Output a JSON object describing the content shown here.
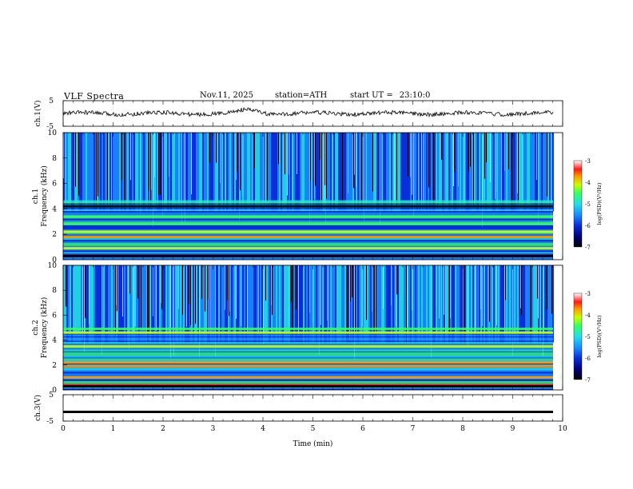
{
  "header": {
    "title": "VLF  Spectra",
    "date": "Nov.11, 2025",
    "station": "station=ATH",
    "start_label": "start  UT  =",
    "start_time": "23:10:0"
  },
  "chart_data": [
    {
      "type": "line",
      "ylabel": "ch.1(V)",
      "yticks": [
        "5",
        "-5"
      ],
      "ylim": [
        -5,
        5
      ],
      "note_series": "broadband waveform, small-amplitude noise around 0 V"
    },
    {
      "type": "heatmap",
      "ylabel_top": "ch.1",
      "ylabel": "Frequency  (kHz)",
      "yticks": [
        "0",
        "2",
        "4",
        "6",
        "8",
        "10"
      ],
      "ylim": [
        0,
        10
      ],
      "colorbar": {
        "label": "log(PSD)(V²/Hz)",
        "ticks": [
          "-3",
          "-4",
          "-5",
          "-6",
          "-7"
        ],
        "range": [
          -7,
          -3
        ]
      },
      "bands_khz": [
        {
          "freq": 0.3,
          "level": -3.5
        },
        {
          "freq": 0.9,
          "level": -4.5
        },
        {
          "freq": 1.8,
          "level": -4.0
        },
        {
          "freq": 2.2,
          "level": -4.5
        },
        {
          "freq": 2.8,
          "level": -5.0
        },
        {
          "freq": 3.4,
          "level": -5.0
        },
        {
          "freq": 4.2,
          "level": -6.8
        }
      ]
    },
    {
      "type": "heatmap",
      "ylabel_top": "ch.2",
      "ylabel": "Frequency  (kHz)",
      "yticks": [
        "0",
        "2",
        "4",
        "6",
        "8",
        "10"
      ],
      "ylim": [
        0,
        10
      ],
      "colorbar": {
        "label": "log(PSD)(V²/Hz)",
        "ticks": [
          "-3",
          "-4",
          "-5",
          "-6",
          "-7"
        ],
        "range": [
          -7,
          -3
        ]
      },
      "bands_khz": [
        {
          "freq": 0.4,
          "level": -3.5
        },
        {
          "freq": 1.0,
          "level": -4.0
        },
        {
          "freq": 1.9,
          "level": -4.2
        },
        {
          "freq": 2.2,
          "level": -4.0
        },
        {
          "freq": 3.5,
          "level": -4.5
        },
        {
          "freq": 4.6,
          "level": -4.5
        },
        {
          "freq": 4.9,
          "level": -5.0
        }
      ]
    },
    {
      "type": "line",
      "ylabel": "ch.3(V)",
      "yticks": [
        "5",
        "-5"
      ],
      "ylim": [
        -5,
        5
      ],
      "xlabel": "Time  (min)",
      "xticks": [
        "0",
        "1",
        "2",
        "3",
        "4",
        "5",
        "6",
        "7",
        "8",
        "9",
        "10"
      ],
      "xlim": [
        0,
        10
      ],
      "note_series": "flat trace near -1.5 V"
    }
  ],
  "colors": {
    "colormap": [
      "#000000",
      "#00007a",
      "#0a2fd8",
      "#1a8cff",
      "#24e0e6",
      "#33ff66",
      "#ccff00",
      "#ff9900",
      "#ff1a1a",
      "#ffffff"
    ]
  }
}
